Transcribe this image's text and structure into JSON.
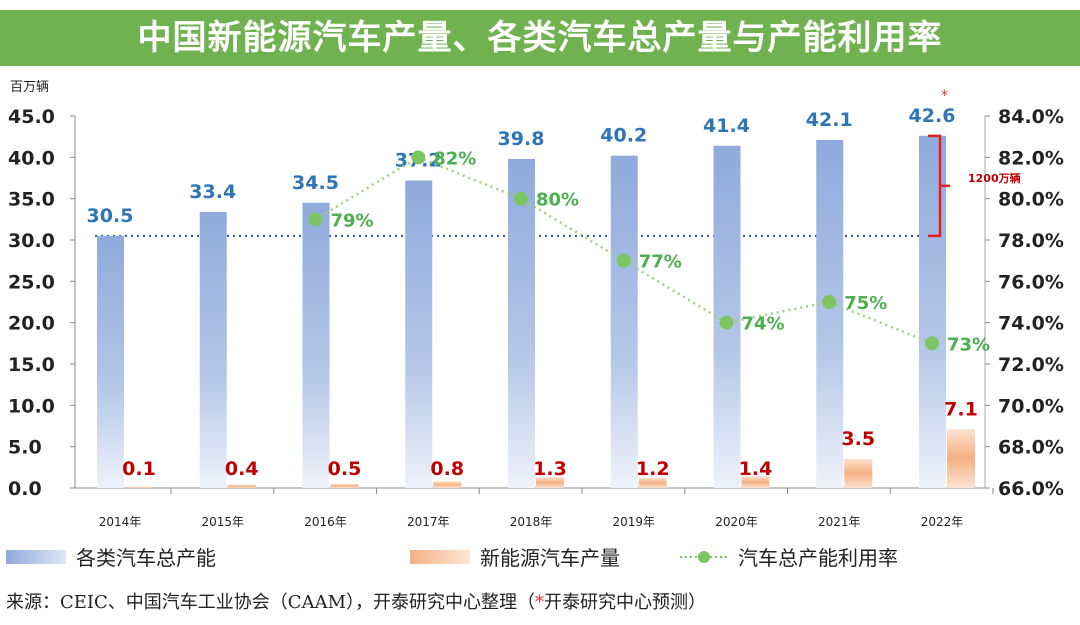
{
  "title": "中国新能源汽车产量、各类汽车总产量与产能利用率",
  "chart_data": {
    "type": "bar",
    "title": "中国新能源汽车产量、各类汽车总产量与产能利用率",
    "ylabel": "百万辆",
    "categories": [
      "2014年",
      "2015年",
      "2016年",
      "2017年",
      "2018年",
      "2019年",
      "2020年",
      "2021年",
      "2022年"
    ],
    "ylim": [
      0,
      45
    ],
    "y_ticks": [
      "0.0",
      "5.0",
      "10.0",
      "15.0",
      "20.0",
      "25.0",
      "30.0",
      "35.0",
      "40.0",
      "45.0"
    ],
    "y2lim": [
      66,
      84
    ],
    "y2_ticks": [
      "66.0%",
      "68.0%",
      "70.0%",
      "72.0%",
      "74.0%",
      "76.0%",
      "78.0%",
      "80.0%",
      "82.0%",
      "84.0%"
    ],
    "series": [
      {
        "name": "各类汽车总产能",
        "type": "bar",
        "axis": "left",
        "color": "#8faadc",
        "values": [
          30.5,
          33.4,
          34.5,
          37.2,
          39.8,
          40.2,
          41.4,
          42.1,
          42.6
        ],
        "labels": [
          "30.5",
          "33.4",
          "34.5",
          "37.2",
          "39.8",
          "40.2",
          "41.4",
          "42.1",
          "42.6"
        ]
      },
      {
        "name": "新能源汽车产量",
        "type": "bar",
        "axis": "left",
        "color": "#f4b183",
        "values": [
          0.1,
          0.4,
          0.5,
          0.8,
          1.3,
          1.2,
          1.4,
          3.5,
          7.1
        ],
        "labels": [
          "0.1",
          "0.4",
          "0.5",
          "0.8",
          "1.3",
          "1.2",
          "1.4",
          "3.5",
          "7.1"
        ]
      },
      {
        "name": "汽车总产能利用率",
        "type": "line",
        "axis": "right",
        "color": "#7dc462",
        "values": [
          null,
          null,
          79,
          82,
          80,
          77,
          74,
          75,
          73
        ],
        "labels": [
          "",
          "",
          "79%",
          "82%",
          "80%",
          "77%",
          "74%",
          "75%",
          "73%"
        ]
      }
    ],
    "annotations": {
      "reference_value": 30.5,
      "bracket_label": "1200万辆",
      "forecast_marker": "*"
    },
    "grid": false,
    "legend": "bottom"
  },
  "source": {
    "text": "来源：CEIC、中国汽车工业协会（CAAM），开泰研究中心整理（",
    "star": "*",
    "tail": "开泰研究中心预测）"
  }
}
